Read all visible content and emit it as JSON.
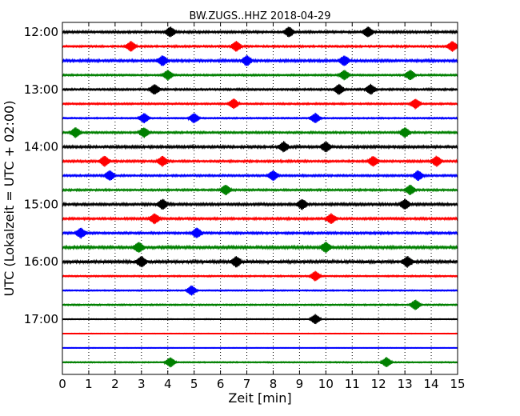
{
  "chart_data": {
    "type": "line",
    "title": "BW.ZUGS..HHZ 2018-04-29",
    "xlabel": "Zeit  [min]",
    "ylabel": "UTC (Lokalzeit = UTC + 02:00)",
    "xlim": [
      0,
      15
    ],
    "x_ticks": [
      "0",
      "1",
      "2",
      "3",
      "4",
      "5",
      "6",
      "7",
      "8",
      "9",
      "10",
      "11",
      "12",
      "13",
      "14",
      "15"
    ],
    "y_ticks": [
      "12:00",
      "13:00",
      "14:00",
      "15:00",
      "16:00",
      "17:00"
    ],
    "ylim_minutes": [
      0,
      360
    ],
    "row_interval_minutes": 15,
    "grid": "vertical dotted",
    "line_colors": [
      "#000000",
      "#ff0000",
      "#0000ff",
      "#008000"
    ],
    "series": [
      {
        "start": "12:00",
        "color": "#000000",
        "events_min": [
          4.1,
          8.6,
          11.6
        ],
        "noise": 0.9
      },
      {
        "start": "12:15",
        "color": "#ff0000",
        "events_min": [
          2.6,
          6.6,
          14.8
        ],
        "noise": 0.8
      },
      {
        "start": "12:30",
        "color": "#0000ff",
        "events_min": [
          3.8,
          7.0,
          10.7
        ],
        "noise": 1.0
      },
      {
        "start": "12:45",
        "color": "#008000",
        "events_min": [
          4.0,
          10.7,
          13.2
        ],
        "noise": 0.7
      },
      {
        "start": "13:00",
        "color": "#000000",
        "events_min": [
          3.5,
          10.5,
          11.7
        ],
        "noise": 0.8
      },
      {
        "start": "13:15",
        "color": "#ff0000",
        "events_min": [
          6.5,
          13.4
        ],
        "noise": 0.7
      },
      {
        "start": "13:30",
        "color": "#0000ff",
        "events_min": [
          3.1,
          5.0,
          9.6
        ],
        "noise": 0.6
      },
      {
        "start": "13:45",
        "color": "#008000",
        "events_min": [
          0.5,
          3.1,
          13.0
        ],
        "noise": 0.8
      },
      {
        "start": "14:00",
        "color": "#000000",
        "events_min": [
          8.4,
          10.0
        ],
        "noise": 1.0
      },
      {
        "start": "14:15",
        "color": "#ff0000",
        "events_min": [
          1.6,
          3.8,
          11.8,
          14.2
        ],
        "noise": 0.9
      },
      {
        "start": "14:30",
        "color": "#0000ff",
        "events_min": [
          1.8,
          8.0,
          13.5
        ],
        "noise": 0.8
      },
      {
        "start": "14:45",
        "color": "#008000",
        "events_min": [
          6.2,
          13.2
        ],
        "noise": 0.8
      },
      {
        "start": "15:00",
        "color": "#000000",
        "events_min": [
          3.8,
          9.1,
          13.0
        ],
        "noise": 1.0
      },
      {
        "start": "15:15",
        "color": "#ff0000",
        "events_min": [
          3.5,
          10.2
        ],
        "noise": 0.9
      },
      {
        "start": "15:30",
        "color": "#0000ff",
        "events_min": [
          0.7,
          5.1
        ],
        "noise": 0.9
      },
      {
        "start": "15:45",
        "color": "#008000",
        "events_min": [
          2.9,
          10.0
        ],
        "noise": 1.1
      },
      {
        "start": "16:00",
        "color": "#000000",
        "events_min": [
          3.0,
          6.6,
          13.1
        ],
        "noise": 1.3
      },
      {
        "start": "16:15",
        "color": "#ff0000",
        "events_min": [
          9.6
        ],
        "noise": 0.6
      },
      {
        "start": "16:30",
        "color": "#0000ff",
        "events_min": [
          4.9
        ],
        "noise": 0.5
      },
      {
        "start": "16:45",
        "color": "#008000",
        "events_min": [
          13.4
        ],
        "noise": 0.6
      },
      {
        "start": "17:00",
        "color": "#000000",
        "events_min": [
          9.6
        ],
        "noise": 0.4
      },
      {
        "start": "17:15",
        "color": "#ff0000",
        "events_min": [],
        "noise": 0.3
      },
      {
        "start": "17:30",
        "color": "#0000ff",
        "events_min": [],
        "noise": 0.3
      },
      {
        "start": "17:45",
        "color": "#008000",
        "events_min": [
          4.1,
          12.3
        ],
        "noise": 0.5
      }
    ]
  }
}
